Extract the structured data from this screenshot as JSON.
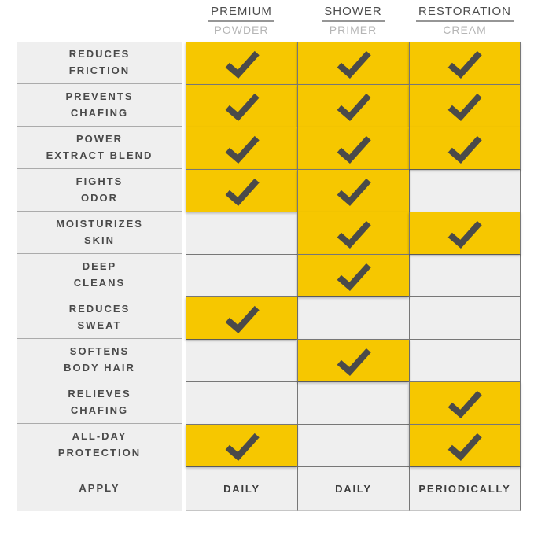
{
  "chart_data": {
    "type": "table",
    "columns": [
      {
        "name": "PREMIUM",
        "sub": "POWDER"
      },
      {
        "name": "SHOWER",
        "sub": "PRIMER"
      },
      {
        "name": "RESTORATION",
        "sub": "CREAM"
      }
    ],
    "feature_rows": [
      {
        "label_lines": [
          "REDUCES",
          "FRICTION"
        ],
        "checks": [
          true,
          true,
          true
        ]
      },
      {
        "label_lines": [
          "PREVENTS",
          "CHAFING"
        ],
        "checks": [
          true,
          true,
          true
        ]
      },
      {
        "label_lines": [
          "POWER",
          "EXTRACT BLEND"
        ],
        "checks": [
          true,
          true,
          true
        ]
      },
      {
        "label_lines": [
          "FIGHTS",
          "ODOR"
        ],
        "checks": [
          true,
          true,
          false
        ]
      },
      {
        "label_lines": [
          "MOISTURIZES",
          "SKIN"
        ],
        "checks": [
          false,
          true,
          true
        ]
      },
      {
        "label_lines": [
          "DEEP",
          "CLEANS"
        ],
        "checks": [
          false,
          true,
          false
        ]
      },
      {
        "label_lines": [
          "REDUCES",
          "SWEAT"
        ],
        "checks": [
          true,
          false,
          false
        ]
      },
      {
        "label_lines": [
          "SOFTENS",
          "BODY HAIR"
        ],
        "checks": [
          false,
          true,
          false
        ]
      },
      {
        "label_lines": [
          "RELIEVES",
          "CHAFING"
        ],
        "checks": [
          false,
          false,
          true
        ]
      },
      {
        "label_lines": [
          "ALL-DAY",
          "PROTECTION"
        ],
        "checks": [
          true,
          false,
          true
        ]
      }
    ],
    "apply_row": {
      "label": "APPLY",
      "values": [
        "DAILY",
        "DAILY",
        "PERIODICALLY"
      ]
    },
    "legend_position": "none",
    "grid": true
  },
  "icons": {
    "check": "checkmark-icon"
  },
  "colors": {
    "highlight_yellow": "#F6C700",
    "checkmark": "#4A4A4A",
    "cell_gray": "#EFEFEF",
    "grid_line": "#777777",
    "label_divider": "#ABABAB",
    "header_text": "#4D4D4D",
    "header_subtext": "#B5B5B5",
    "label_text": "#4A4A4A",
    "apply_text": "#3C3C3C",
    "background": "#FFFFFF"
  }
}
